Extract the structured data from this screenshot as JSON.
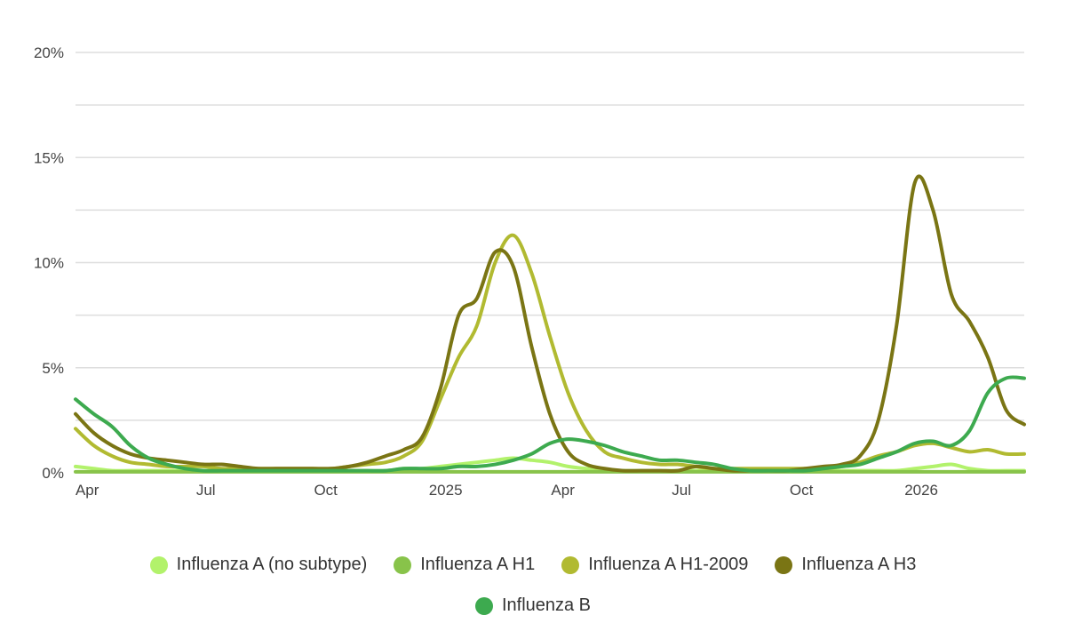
{
  "chart_data": {
    "type": "line",
    "title": "",
    "xlabel": "",
    "ylabel": "",
    "ylim": [
      0,
      20
    ],
    "y_ticks": [
      "0%",
      "5%",
      "10%",
      "15%",
      "20%"
    ],
    "x_ticks": [
      "Apr",
      "Jul",
      "Oct",
      "2025",
      "Apr",
      "Jul",
      "Oct",
      "2026"
    ],
    "legend_position": "bottom-center",
    "x": [
      "2024-03-23",
      "2024-04-06",
      "2024-04-20",
      "2024-05-04",
      "2024-05-18",
      "2024-06-01",
      "2024-06-15",
      "2024-06-29",
      "2024-07-13",
      "2024-07-27",
      "2024-08-10",
      "2024-08-24",
      "2024-09-07",
      "2024-09-21",
      "2024-10-05",
      "2024-10-19",
      "2024-11-02",
      "2024-11-16",
      "2024-11-30",
      "2024-12-14",
      "2024-12-28",
      "2025-01-11",
      "2025-01-25",
      "2025-02-08",
      "2025-02-22",
      "2025-03-08",
      "2025-03-22",
      "2025-04-05",
      "2025-04-19",
      "2025-05-03",
      "2025-05-17",
      "2025-05-31",
      "2025-06-14",
      "2025-06-28",
      "2025-07-12",
      "2025-07-26",
      "2025-08-09",
      "2025-08-23",
      "2025-09-06",
      "2025-09-20",
      "2025-10-04",
      "2025-10-18",
      "2025-11-01",
      "2025-11-15",
      "2025-11-29",
      "2025-12-13",
      "2025-12-27",
      "2026-01-10",
      "2026-01-24",
      "2026-02-07",
      "2026-02-21",
      "2026-03-07",
      "2026-03-21"
    ],
    "series": [
      {
        "name": "Influenza A (no subtype)",
        "color": "#b2f26b",
        "values": [
          0.3,
          0.2,
          0.1,
          0.1,
          0.1,
          0.1,
          0.1,
          0.1,
          0.1,
          0.1,
          0.1,
          0.1,
          0.1,
          0.1,
          0.1,
          0.1,
          0.1,
          0.1,
          0.2,
          0.2,
          0.3,
          0.4,
          0.5,
          0.6,
          0.7,
          0.6,
          0.5,
          0.3,
          0.2,
          0.1,
          0.1,
          0.1,
          0.1,
          0.1,
          0.1,
          0.1,
          0.1,
          0.1,
          0.1,
          0.1,
          0.1,
          0.1,
          0.1,
          0.1,
          0.1,
          0.1,
          0.2,
          0.3,
          0.4,
          0.2,
          0.1,
          0.1,
          0.1
        ]
      },
      {
        "name": "Influenza A H1",
        "color": "#88c34a",
        "values": [
          0.05,
          0.05,
          0.05,
          0.05,
          0.05,
          0.05,
          0.05,
          0.05,
          0.05,
          0.05,
          0.05,
          0.05,
          0.05,
          0.05,
          0.05,
          0.05,
          0.05,
          0.05,
          0.05,
          0.05,
          0.05,
          0.05,
          0.05,
          0.05,
          0.05,
          0.05,
          0.05,
          0.05,
          0.05,
          0.05,
          0.05,
          0.05,
          0.05,
          0.05,
          0.05,
          0.05,
          0.05,
          0.05,
          0.05,
          0.05,
          0.05,
          0.05,
          0.05,
          0.05,
          0.05,
          0.05,
          0.05,
          0.05,
          0.05,
          0.05,
          0.05,
          0.05,
          0.05
        ]
      },
      {
        "name": "Influenza A H1-2009",
        "color": "#b1ba31",
        "values": [
          2.1,
          1.3,
          0.8,
          0.5,
          0.4,
          0.3,
          0.3,
          0.3,
          0.2,
          0.2,
          0.2,
          0.2,
          0.2,
          0.2,
          0.2,
          0.3,
          0.4,
          0.5,
          0.8,
          1.5,
          3.5,
          5.5,
          7.0,
          10.0,
          11.3,
          9.5,
          6.5,
          3.8,
          2.0,
          1.0,
          0.7,
          0.5,
          0.4,
          0.4,
          0.3,
          0.2,
          0.2,
          0.2,
          0.2,
          0.2,
          0.2,
          0.2,
          0.3,
          0.5,
          0.8,
          1.0,
          1.3,
          1.4,
          1.2,
          1.0,
          1.1,
          0.9,
          0.9
        ]
      },
      {
        "name": "Influenza A H3",
        "color": "#7a7514",
        "values": [
          2.8,
          1.9,
          1.3,
          0.9,
          0.7,
          0.6,
          0.5,
          0.4,
          0.4,
          0.3,
          0.2,
          0.2,
          0.2,
          0.2,
          0.2,
          0.3,
          0.5,
          0.8,
          1.1,
          1.7,
          4.0,
          7.5,
          8.3,
          10.5,
          9.8,
          6.0,
          2.8,
          1.0,
          0.4,
          0.2,
          0.1,
          0.1,
          0.1,
          0.1,
          0.3,
          0.2,
          0.1,
          0.1,
          0.1,
          0.1,
          0.2,
          0.3,
          0.4,
          0.8,
          2.5,
          7.0,
          13.8,
          12.5,
          8.5,
          7.2,
          5.5,
          3.0,
          2.3
        ]
      },
      {
        "name": "Influenza B",
        "color": "#3daa4f",
        "values": [
          3.5,
          2.8,
          2.2,
          1.3,
          0.7,
          0.4,
          0.2,
          0.1,
          0.1,
          0.1,
          0.1,
          0.1,
          0.1,
          0.1,
          0.1,
          0.1,
          0.1,
          0.1,
          0.2,
          0.2,
          0.2,
          0.3,
          0.3,
          0.4,
          0.6,
          0.9,
          1.4,
          1.6,
          1.5,
          1.3,
          1.0,
          0.8,
          0.6,
          0.6,
          0.5,
          0.4,
          0.2,
          0.1,
          0.1,
          0.1,
          0.1,
          0.2,
          0.3,
          0.4,
          0.7,
          1.0,
          1.4,
          1.5,
          1.3,
          2.0,
          3.8,
          4.5,
          4.5
        ]
      }
    ]
  }
}
